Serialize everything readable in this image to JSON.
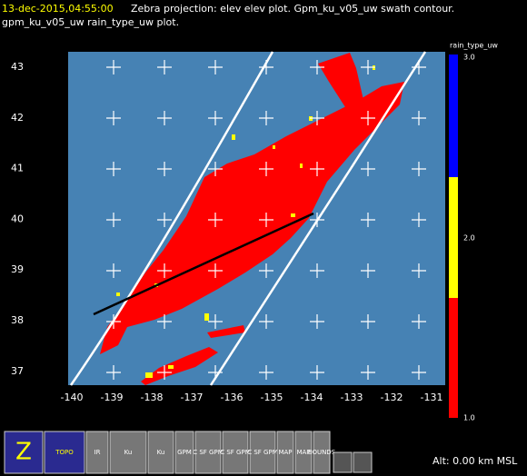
{
  "header": {
    "time": "13-dec-2015,04:55:00",
    "line1": "Zebra projection: elev elev  plot.  Gpm_ku_v05_uw swath contour.",
    "line2": "gpm_ku_v05_uw rain_type_uw  plot."
  },
  "map": {
    "x_labels": [
      "-140",
      "-139",
      "-138",
      "-137",
      "-136",
      "-135",
      "-134",
      "-133",
      "-132",
      "-131"
    ],
    "y_labels": [
      "43",
      "42",
      "41",
      "40",
      "39",
      "38",
      "37"
    ]
  },
  "colorbar": {
    "title": "rain_type_uw",
    "labels": [
      "3.0",
      "2.0",
      "1.0"
    ]
  },
  "toolbar": {
    "buttons": [
      "Z",
      "TOPO",
      "IR",
      "Ku",
      "Ku",
      "GPM",
      "C SF GPM",
      "C SF GPM",
      "C SF GPM",
      "MAP",
      "MAP",
      "BOUNDS"
    ]
  },
  "status": "Alt: 0.00 km MSL"
}
